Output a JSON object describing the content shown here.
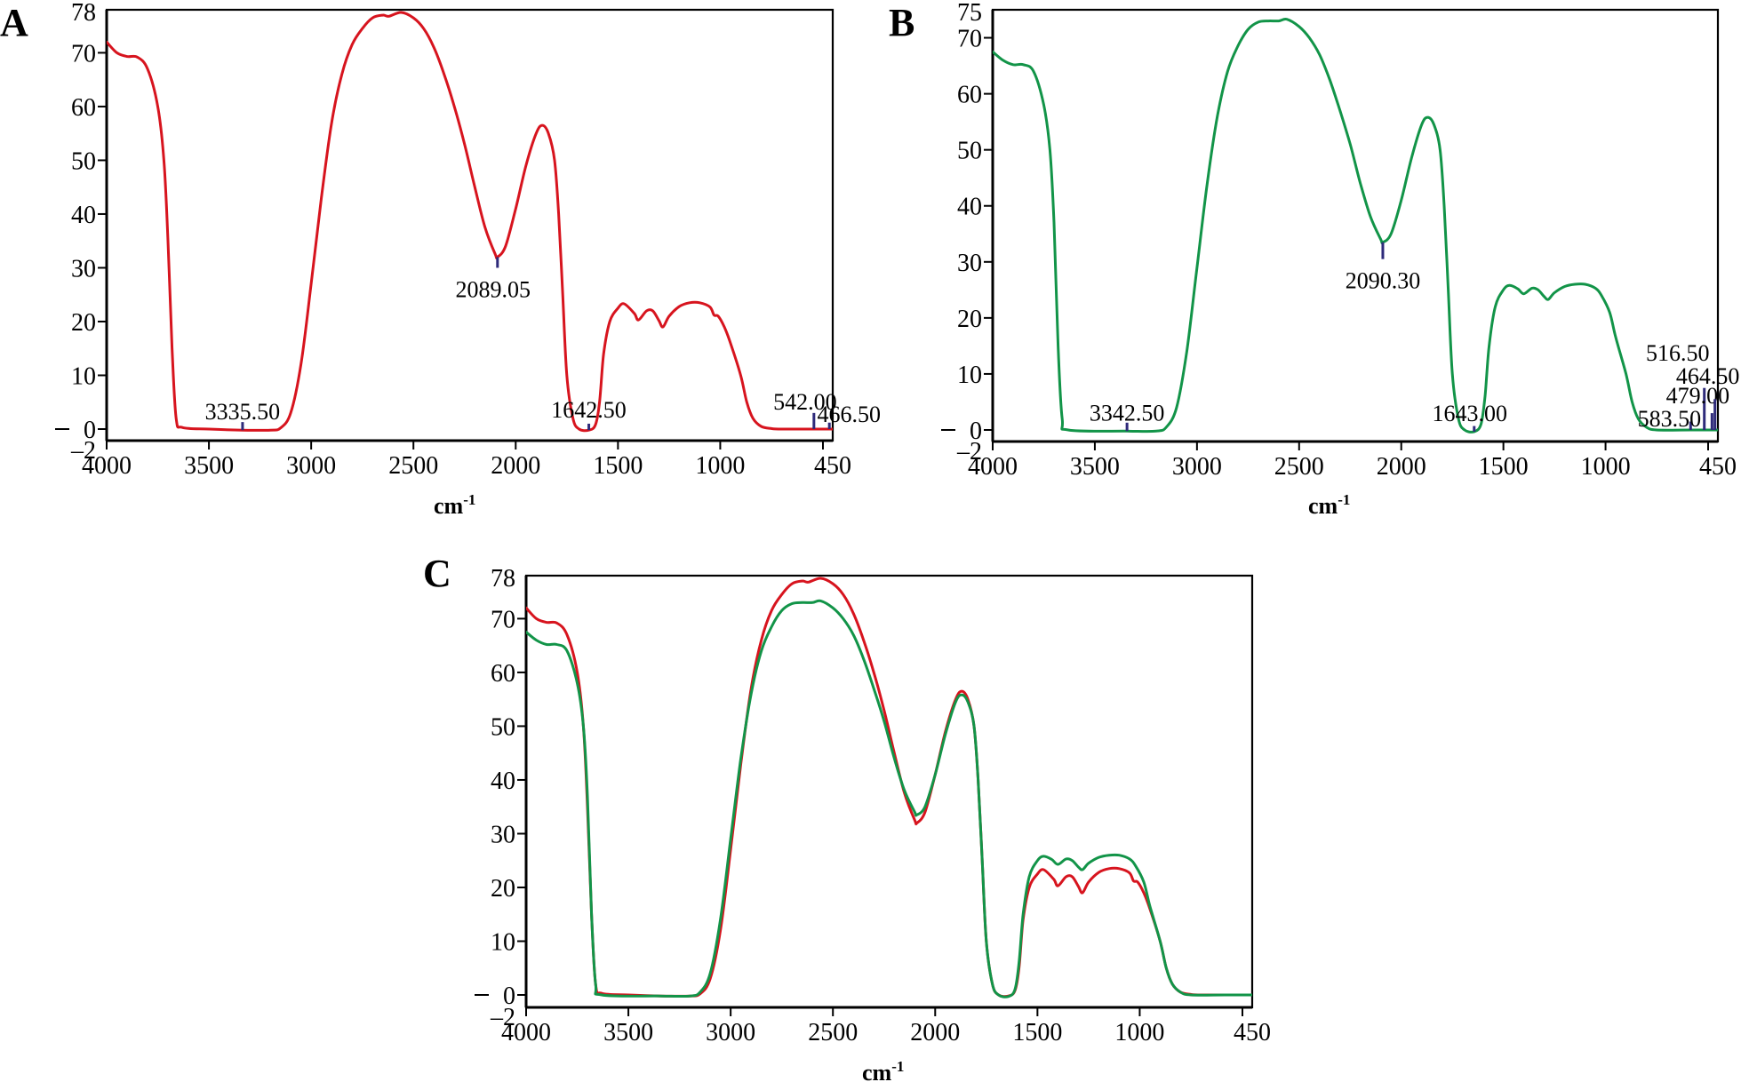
{
  "colors": {
    "red": "#d7141e",
    "green": "#129448",
    "annotation": "#2e2a7a"
  },
  "chart_data": [
    {
      "panel": "A",
      "type": "line",
      "title": "",
      "xlabel": "cm",
      "xlabel_sup": "-1",
      "ylabel": "",
      "xlim": [
        4000,
        450
      ],
      "ylim": [
        -2,
        78
      ],
      "x_ticks": [
        4000,
        3500,
        3000,
        2500,
        2000,
        1500,
        1000,
        450
      ],
      "y_ticks": [
        -2,
        0,
        10,
        20,
        30,
        40,
        50,
        60,
        70,
        78
      ],
      "grid": false,
      "series": [
        {
          "name": "A",
          "color": "red",
          "x": [
            4000,
            3950,
            3900,
            3850,
            3800,
            3750,
            3720,
            3700,
            3680,
            3660,
            3630,
            3500,
            3335.5,
            3200,
            3150,
            3100,
            3050,
            3000,
            2950,
            2900,
            2850,
            2800,
            2750,
            2700,
            2650,
            2620,
            2560,
            2500,
            2450,
            2400,
            2350,
            2300,
            2250,
            2200,
            2150,
            2100,
            2089,
            2050,
            2000,
            1950,
            1900,
            1870,
            1840,
            1810,
            1790,
            1770,
            1750,
            1720,
            1690,
            1642.5,
            1610,
            1590,
            1570,
            1540,
            1500,
            1470,
            1420,
            1400,
            1360,
            1330,
            1300,
            1280,
            1250,
            1200,
            1150,
            1100,
            1050,
            1030,
            1010,
            980,
            950,
            900,
            870,
            840,
            800,
            750,
            700,
            542,
            466.5,
            450
          ],
          "y": [
            72,
            70,
            69.3,
            69.2,
            67,
            60,
            50,
            35,
            15,
            2,
            0.3,
            0,
            -0.2,
            -0.2,
            0.2,
            3,
            12,
            27,
            43,
            57,
            66,
            71.5,
            74.5,
            76.5,
            77,
            76.8,
            77.5,
            76.5,
            74.5,
            71,
            66,
            60,
            53,
            45,
            37.5,
            32.5,
            32,
            34,
            41,
            49,
            55,
            56.5,
            55,
            50,
            40,
            25,
            10,
            2,
            0,
            -0.2,
            0.8,
            5,
            14,
            20,
            22.5,
            23.3,
            21.5,
            20.3,
            22,
            22,
            20.2,
            19,
            21,
            22.8,
            23.5,
            23.5,
            22.7,
            21.2,
            21,
            19,
            16,
            10,
            5,
            2,
            0.5,
            0.1,
            0,
            0,
            0,
            0
          ]
        }
      ],
      "annotations": [
        {
          "x": 3335.5,
          "y": -0.2,
          "label": "3335.50",
          "tick_len": 1.5
        },
        {
          "x": 2089.05,
          "y": 32,
          "label": "2089.05",
          "tick_len": -2
        },
        {
          "x": 1642.5,
          "y": -0.2,
          "label": "1642.50",
          "tick_len": 1.2
        },
        {
          "x": 542.0,
          "y": 0,
          "label": "542.00",
          "tick_len": 3
        },
        {
          "x": 466.5,
          "y": 0,
          "label": "466.50",
          "tick_len": 1.2
        }
      ]
    },
    {
      "panel": "B",
      "type": "line",
      "title": "",
      "xlabel": "cm",
      "xlabel_sup": "-1",
      "ylabel": "",
      "xlim": [
        4000,
        450
      ],
      "ylim": [
        -2,
        75
      ],
      "x_ticks": [
        4000,
        3500,
        3000,
        2500,
        2000,
        1500,
        1000,
        450
      ],
      "y_ticks": [
        -2,
        0,
        10,
        20,
        30,
        40,
        50,
        60,
        70,
        75
      ],
      "grid": false,
      "series": [
        {
          "name": "B",
          "color": "green",
          "x": [
            4000,
            3950,
            3900,
            3850,
            3800,
            3750,
            3720,
            3700,
            3680,
            3660,
            3630,
            3342.5,
            3200,
            3150,
            3100,
            3050,
            3000,
            2950,
            2900,
            2850,
            2800,
            2750,
            2700,
            2650,
            2600,
            2560,
            2500,
            2450,
            2400,
            2350,
            2300,
            2250,
            2200,
            2150,
            2100,
            2090.3,
            2050,
            2000,
            1950,
            1900,
            1870,
            1840,
            1810,
            1790,
            1770,
            1750,
            1720,
            1690,
            1643,
            1610,
            1590,
            1570,
            1540,
            1500,
            1470,
            1430,
            1400,
            1360,
            1330,
            1300,
            1280,
            1250,
            1200,
            1150,
            1100,
            1050,
            1020,
            980,
            950,
            900,
            870,
            840,
            800,
            750,
            583.5,
            450
          ],
          "y": [
            67.5,
            66,
            65.2,
            65.2,
            64,
            58,
            50,
            37,
            15,
            2,
            0,
            -0.2,
            -0.2,
            0.5,
            4,
            14,
            29,
            44,
            56,
            64,
            68.5,
            71.5,
            72.8,
            73,
            73,
            73.3,
            72,
            70,
            67,
            62.5,
            57,
            51,
            44,
            38,
            34,
            33.5,
            35,
            41,
            48.5,
            54.5,
            55.8,
            54.5,
            50,
            40,
            25,
            10,
            2,
            0,
            -0.3,
            1,
            6,
            15,
            22,
            25,
            25.8,
            25.2,
            24.3,
            25.3,
            25,
            23.8,
            23.3,
            24.5,
            25.6,
            26,
            26,
            25.3,
            24,
            21,
            16.5,
            10,
            5,
            2,
            0.5,
            0,
            0,
            0
          ]
        }
      ],
      "annotations": [
        {
          "x": 3342.5,
          "y": -0.2,
          "label": "3342.50",
          "tick_len": 1.5
        },
        {
          "x": 2090.3,
          "y": 33.5,
          "label": "2090.30",
          "tick_len": -3
        },
        {
          "x": 1643.0,
          "y": -0.3,
          "label": "1643.00",
          "tick_len": 1
        },
        {
          "x": 583.5,
          "y": 0,
          "label": "583.50",
          "tick_len": 1.5
        },
        {
          "x": 516.5,
          "y": 0,
          "label": "516.50",
          "tick_len": 7.5
        },
        {
          "x": 479.0,
          "y": 0,
          "label": "479.00",
          "tick_len": 3
        },
        {
          "x": 464.5,
          "y": 0,
          "label": "464.50",
          "tick_len": 5.5
        }
      ]
    },
    {
      "panel": "C",
      "type": "line",
      "title": "",
      "xlabel": "cm",
      "xlabel_sup": "-1",
      "ylabel": "",
      "xlim": [
        4000,
        450
      ],
      "ylim": [
        -2,
        78
      ],
      "x_ticks": [
        4000,
        3500,
        3000,
        2500,
        2000,
        1500,
        1000,
        450
      ],
      "y_ticks": [
        -2,
        0,
        10,
        20,
        30,
        40,
        50,
        60,
        70,
        78
      ],
      "grid": false,
      "series_ref": [
        "A",
        "B"
      ],
      "annotations": []
    }
  ]
}
